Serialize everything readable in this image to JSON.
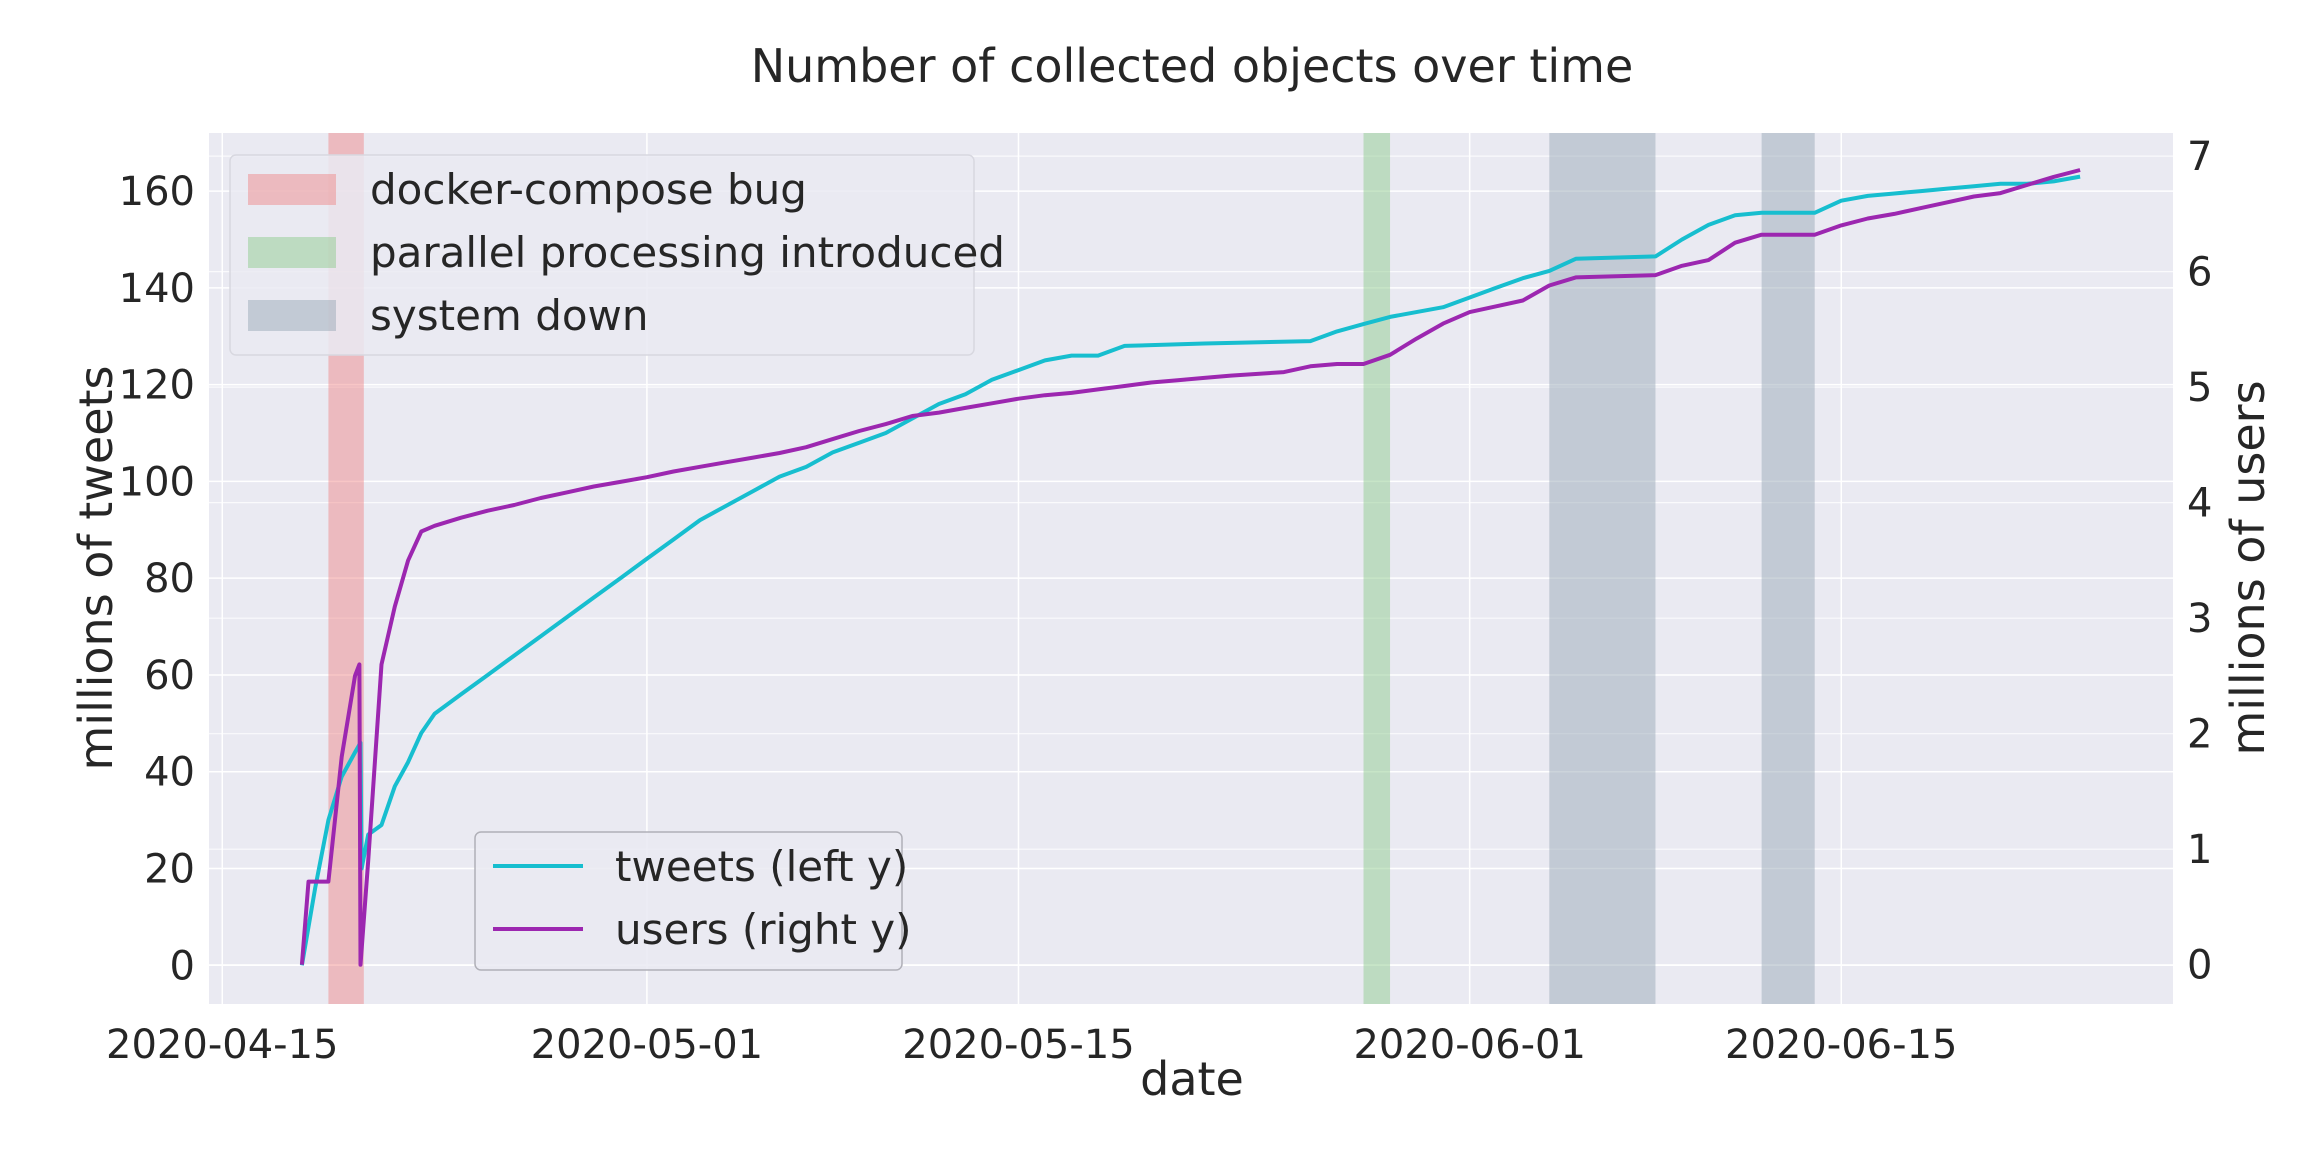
{
  "chart_data": {
    "type": "line",
    "title": "Number of collected objects over time",
    "xlabel": "date",
    "ylabel_left": "millions of tweets",
    "ylabel_right": "millions of users",
    "x_axis": {
      "type": "date",
      "ticks": [
        "2020-04-15",
        "2020-05-01",
        "2020-05-15",
        "2020-06-01",
        "2020-06-15"
      ],
      "xlim": [
        "2020-04-14T12:00",
        "2020-06-27T12:00"
      ]
    },
    "y_left": {
      "ticks": [
        0,
        20,
        40,
        60,
        80,
        100,
        120,
        140,
        160
      ],
      "ylim": [
        -8,
        172
      ]
    },
    "y_right": {
      "ticks": [
        0,
        1,
        2,
        3,
        4,
        5,
        6,
        7
      ],
      "ylim": [
        -0.34,
        7.2
      ]
    },
    "grid": true,
    "spans": [
      {
        "label": "docker-compose bug",
        "color": "#f08080",
        "opacity": 0.45,
        "start": "2020-04-19T00:00",
        "end": "2020-04-20T08:00"
      },
      {
        "label": "parallel processing introduced",
        "color": "#8fcc8f",
        "opacity": 0.5,
        "start": "2020-05-28T00:00",
        "end": "2020-05-29T00:00"
      },
      {
        "label": "system down",
        "color": "#9aa9b8",
        "opacity": 0.5,
        "start": "2020-06-04T00:00",
        "end": "2020-06-08T00:00"
      },
      {
        "label": "system down",
        "color": "#9aa9b8",
        "opacity": 0.5,
        "start": "2020-06-12T00:00",
        "end": "2020-06-14T00:00"
      }
    ],
    "span_legend": [
      "docker-compose bug",
      "parallel processing introduced",
      "system down"
    ],
    "span_legend_placement": "upper-left",
    "series_legend_placement": "lower-left",
    "series": [
      {
        "name": "tweets (left y)",
        "axis": "left",
        "color": "#17becf",
        "points": [
          [
            "2020-04-18T00:00",
            0
          ],
          [
            "2020-04-18T12:00",
            16
          ],
          [
            "2020-04-19T00:00",
            30
          ],
          [
            "2020-04-19T12:00",
            39
          ],
          [
            "2020-04-20T00:00",
            44
          ],
          [
            "2020-04-20T05:00",
            46
          ],
          [
            "2020-04-20T06:00",
            20
          ],
          [
            "2020-04-20T12:00",
            27
          ],
          [
            "2020-04-21T00:00",
            29
          ],
          [
            "2020-04-21T12:00",
            37
          ],
          [
            "2020-04-22T00:00",
            42
          ],
          [
            "2020-04-22T12:00",
            48
          ],
          [
            "2020-04-23T00:00",
            52
          ],
          [
            "2020-04-24T00:00",
            56
          ],
          [
            "2020-04-25T00:00",
            60
          ],
          [
            "2020-04-26T00:00",
            64
          ],
          [
            "2020-04-27T00:00",
            68
          ],
          [
            "2020-04-28T00:00",
            72
          ],
          [
            "2020-04-29T00:00",
            76
          ],
          [
            "2020-04-30T00:00",
            80
          ],
          [
            "2020-05-01T00:00",
            84
          ],
          [
            "2020-05-02T00:00",
            88
          ],
          [
            "2020-05-03T00:00",
            92
          ],
          [
            "2020-05-04T00:00",
            95
          ],
          [
            "2020-05-05T00:00",
            98
          ],
          [
            "2020-05-06T00:00",
            101
          ],
          [
            "2020-05-07T00:00",
            103
          ],
          [
            "2020-05-08T00:00",
            106
          ],
          [
            "2020-05-09T00:00",
            108
          ],
          [
            "2020-05-10T00:00",
            110
          ],
          [
            "2020-05-11T00:00",
            113
          ],
          [
            "2020-05-12T00:00",
            116
          ],
          [
            "2020-05-13T00:00",
            118
          ],
          [
            "2020-05-14T00:00",
            121
          ],
          [
            "2020-05-15T00:00",
            123
          ],
          [
            "2020-05-16T00:00",
            125
          ],
          [
            "2020-05-17T00:00",
            126
          ],
          [
            "2020-05-18T00:00",
            126
          ],
          [
            "2020-05-19T00:00",
            128
          ],
          [
            "2020-05-22T00:00",
            128.5
          ],
          [
            "2020-05-26T00:00",
            129
          ],
          [
            "2020-05-27T00:00",
            131
          ],
          [
            "2020-05-28T00:00",
            132.5
          ],
          [
            "2020-05-29T00:00",
            134
          ],
          [
            "2020-05-31T00:00",
            136
          ],
          [
            "2020-06-01T00:00",
            138
          ],
          [
            "2020-06-02T00:00",
            140
          ],
          [
            "2020-06-03T00:00",
            142
          ],
          [
            "2020-06-04T00:00",
            143.5
          ],
          [
            "2020-06-05T00:00",
            146
          ],
          [
            "2020-06-08T00:00",
            146.5
          ],
          [
            "2020-06-09T00:00",
            150
          ],
          [
            "2020-06-10T00:00",
            153
          ],
          [
            "2020-06-11T00:00",
            155
          ],
          [
            "2020-06-12T00:00",
            155.5
          ],
          [
            "2020-06-14T00:00",
            155.5
          ],
          [
            "2020-06-15T00:00",
            158
          ],
          [
            "2020-06-16T00:00",
            159
          ],
          [
            "2020-06-17T00:00",
            159.5
          ],
          [
            "2020-06-18T00:00",
            160
          ],
          [
            "2020-06-19T00:00",
            160.5
          ],
          [
            "2020-06-20T00:00",
            161
          ],
          [
            "2020-06-21T00:00",
            161.5
          ],
          [
            "2020-06-22T00:00",
            161.5
          ],
          [
            "2020-06-23T00:00",
            162
          ],
          [
            "2020-06-24T00:00",
            163
          ]
        ]
      },
      {
        "name": "users (right y)",
        "axis": "right",
        "color": "#9c27b0",
        "points": [
          [
            "2020-04-18T00:00",
            0
          ],
          [
            "2020-04-18T06:00",
            0.72
          ],
          [
            "2020-04-19T00:00",
            0.72
          ],
          [
            "2020-04-19T12:00",
            1.8
          ],
          [
            "2020-04-20T00:00",
            2.5
          ],
          [
            "2020-04-20T04:00",
            2.6
          ],
          [
            "2020-04-20T05:00",
            0
          ],
          [
            "2020-04-20T12:00",
            0.9
          ],
          [
            "2020-04-21T00:00",
            2.6
          ],
          [
            "2020-04-21T12:00",
            3.1
          ],
          [
            "2020-04-22T00:00",
            3.5
          ],
          [
            "2020-04-22T12:00",
            3.75
          ],
          [
            "2020-04-23T00:00",
            3.8
          ],
          [
            "2020-04-24T00:00",
            3.87
          ],
          [
            "2020-04-25T00:00",
            3.93
          ],
          [
            "2020-04-26T00:00",
            3.98
          ],
          [
            "2020-04-27T00:00",
            4.04
          ],
          [
            "2020-04-28T00:00",
            4.09
          ],
          [
            "2020-04-29T00:00",
            4.14
          ],
          [
            "2020-04-30T00:00",
            4.18
          ],
          [
            "2020-05-01T00:00",
            4.22
          ],
          [
            "2020-05-02T00:00",
            4.27
          ],
          [
            "2020-05-03T00:00",
            4.31
          ],
          [
            "2020-05-04T00:00",
            4.35
          ],
          [
            "2020-05-05T00:00",
            4.39
          ],
          [
            "2020-05-06T00:00",
            4.43
          ],
          [
            "2020-05-07T00:00",
            4.48
          ],
          [
            "2020-05-08T00:00",
            4.55
          ],
          [
            "2020-05-09T00:00",
            4.62
          ],
          [
            "2020-05-10T00:00",
            4.68
          ],
          [
            "2020-05-11T00:00",
            4.75
          ],
          [
            "2020-05-12T00:00",
            4.78
          ],
          [
            "2020-05-13T00:00",
            4.82
          ],
          [
            "2020-05-14T00:00",
            4.86
          ],
          [
            "2020-05-15T00:00",
            4.9
          ],
          [
            "2020-05-16T00:00",
            4.93
          ],
          [
            "2020-05-17T00:00",
            4.95
          ],
          [
            "2020-05-18T00:00",
            4.98
          ],
          [
            "2020-05-19T00:00",
            5.01
          ],
          [
            "2020-05-20T00:00",
            5.04
          ],
          [
            "2020-05-21T00:00",
            5.06
          ],
          [
            "2020-05-22T00:00",
            5.08
          ],
          [
            "2020-05-23T00:00",
            5.1
          ],
          [
            "2020-05-25T00:00",
            5.13
          ],
          [
            "2020-05-26T00:00",
            5.18
          ],
          [
            "2020-05-27T00:00",
            5.2
          ],
          [
            "2020-05-28T00:00",
            5.2
          ],
          [
            "2020-05-29T00:00",
            5.28
          ],
          [
            "2020-05-30T00:00",
            5.42
          ],
          [
            "2020-05-31T00:00",
            5.55
          ],
          [
            "2020-06-01T00:00",
            5.65
          ],
          [
            "2020-06-02T00:00",
            5.7
          ],
          [
            "2020-06-03T00:00",
            5.75
          ],
          [
            "2020-06-04T00:00",
            5.88
          ],
          [
            "2020-06-05T00:00",
            5.95
          ],
          [
            "2020-06-08T00:00",
            5.97
          ],
          [
            "2020-06-09T00:00",
            6.05
          ],
          [
            "2020-06-10T00:00",
            6.1
          ],
          [
            "2020-06-11T00:00",
            6.25
          ],
          [
            "2020-06-12T00:00",
            6.32
          ],
          [
            "2020-06-14T00:00",
            6.32
          ],
          [
            "2020-06-15T00:00",
            6.4
          ],
          [
            "2020-06-16T00:00",
            6.46
          ],
          [
            "2020-06-17T00:00",
            6.5
          ],
          [
            "2020-06-18T00:00",
            6.55
          ],
          [
            "2020-06-19T00:00",
            6.6
          ],
          [
            "2020-06-20T00:00",
            6.65
          ],
          [
            "2020-06-21T00:00",
            6.68
          ],
          [
            "2020-06-22T00:00",
            6.75
          ],
          [
            "2020-06-23T00:00",
            6.82
          ],
          [
            "2020-06-24T00:00",
            6.88
          ]
        ]
      }
    ]
  }
}
